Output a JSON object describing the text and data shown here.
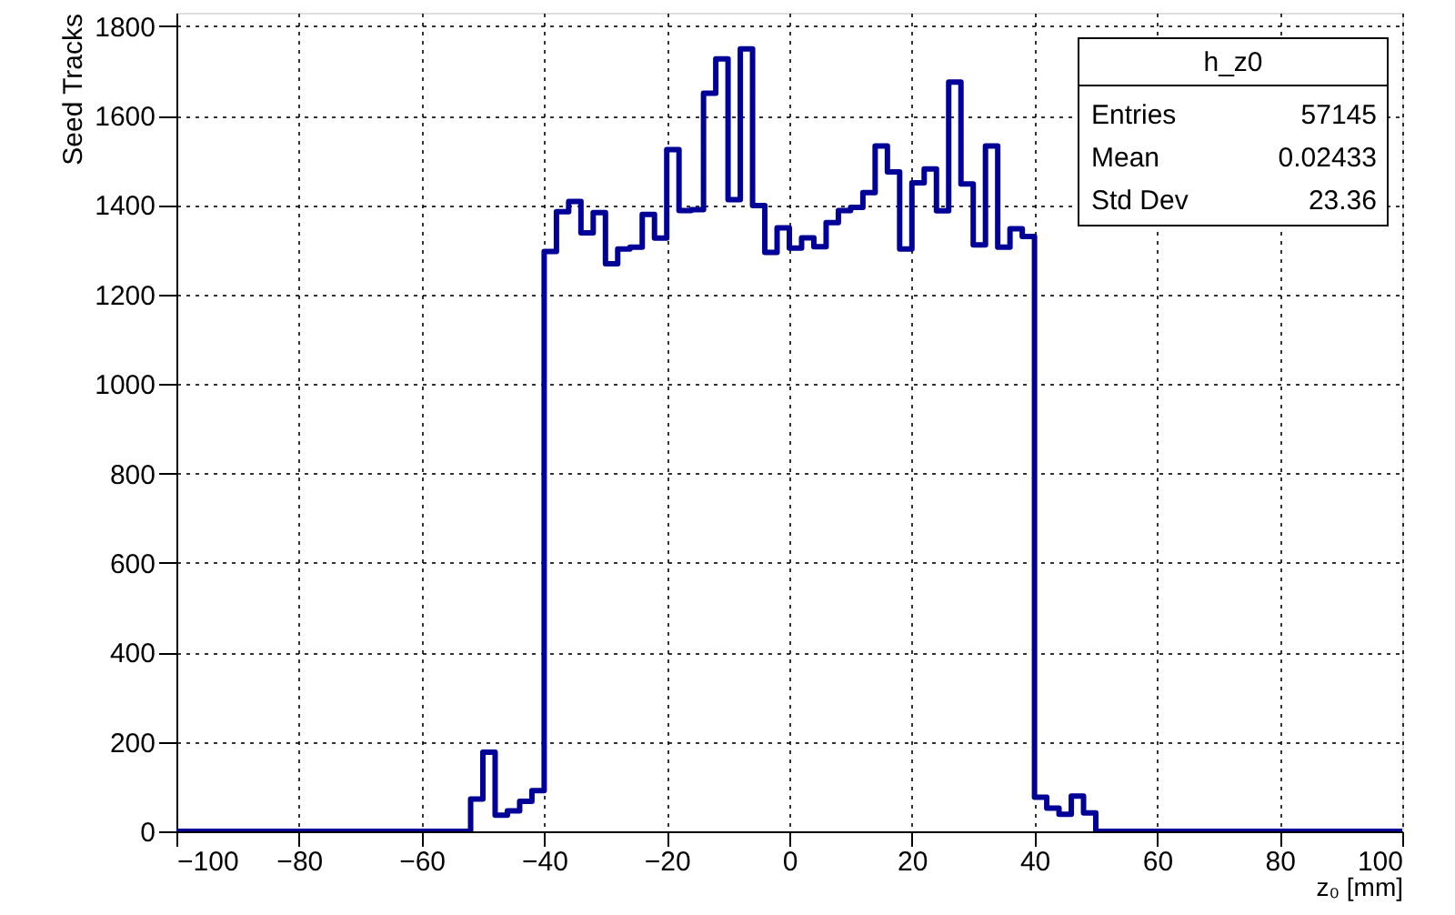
{
  "chart_data": {
    "type": "histogram",
    "xlabel": "z₀ [mm]",
    "ylabel": "Seed Tracks",
    "bins": [
      -100,
      -98,
      -96,
      -94,
      -92,
      -90,
      -88,
      -86,
      -84,
      -82,
      -80,
      -78,
      -76,
      -74,
      -72,
      -70,
      -68,
      -66,
      -64,
      -62,
      -60,
      -58,
      -56,
      -54,
      -52,
      -50,
      -48,
      -46,
      -44,
      -42,
      -40,
      -38,
      -36,
      -34,
      -32,
      -30,
      -28,
      -26,
      -24,
      -22,
      -20,
      -18,
      -16,
      -14,
      -12,
      -10,
      -8,
      -6,
      -4,
      -2,
      0,
      2,
      4,
      6,
      8,
      10,
      12,
      14,
      16,
      18,
      20,
      22,
      24,
      26,
      28,
      30,
      32,
      34,
      36,
      38,
      40,
      42,
      44,
      46,
      48,
      50,
      52,
      54,
      56,
      58,
      60,
      62,
      64,
      66,
      68,
      70,
      72,
      74,
      76,
      78,
      80,
      82,
      84,
      86,
      88,
      90,
      92,
      94,
      96,
      98,
      100
    ],
    "values": [
      0,
      0,
      0,
      0,
      0,
      0,
      0,
      0,
      0,
      0,
      0,
      0,
      0,
      0,
      0,
      0,
      0,
      0,
      0,
      0,
      0,
      0,
      0,
      0,
      72,
      177,
      36,
      46,
      67,
      91,
      1296,
      1385,
      1408,
      1338,
      1383,
      1269,
      1302,
      1306,
      1379,
      1326,
      1524,
      1388,
      1390,
      1650,
      1727,
      1412,
      1749,
      1399,
      1294,
      1349,
      1304,
      1327,
      1307,
      1361,
      1388,
      1395,
      1428,
      1532,
      1474,
      1302,
      1450,
      1481,
      1387,
      1675,
      1447,
      1311,
      1532,
      1306,
      1347,
      1330,
      76,
      52,
      38,
      79,
      41,
      0,
      0,
      0,
      0,
      0,
      0,
      0,
      0,
      0,
      0,
      0,
      0,
      0,
      0,
      0,
      0,
      0,
      0,
      0,
      0,
      0,
      0,
      0,
      0,
      0
    ],
    "color": "#000099",
    "xlim": [
      -100,
      100
    ],
    "xticks": [
      -100,
      -80,
      -60,
      -40,
      -20,
      0,
      20,
      40,
      60,
      80,
      100
    ],
    "ylim": [
      0,
      1830
    ],
    "yticks": [
      0,
      200,
      400,
      600,
      800,
      1000,
      1200,
      1400,
      1600,
      1800
    ],
    "grid": true,
    "annotations": [
      "h_z0",
      "Entries",
      "57145",
      "Mean",
      "0.02433",
      "Std Dev",
      "23.36"
    ]
  }
}
